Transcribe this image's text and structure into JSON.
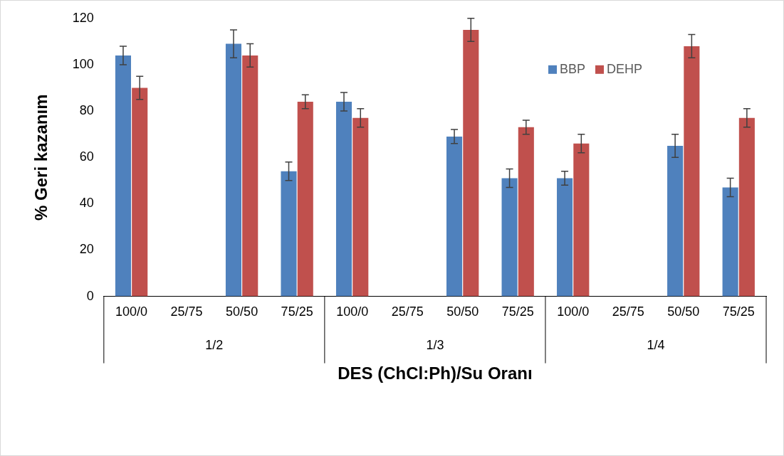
{
  "chart_data": {
    "type": "bar",
    "xlabel": "DES (ChCl:Ph)/Su Oranı",
    "ylabel": "% Geri kazanım",
    "categories": [
      "100/0",
      "25/75",
      "50/50",
      "75/25",
      "100/0",
      "25/75",
      "50/50",
      "75/25",
      "100/0",
      "25/75",
      "50/50",
      "75/25"
    ],
    "annotations": [
      "1/2",
      "1/3",
      "1/4"
    ],
    "series": [
      {
        "name": "BBP",
        "color": "#4f81bd",
        "values": [
          104,
          0,
          109,
          54,
          84,
          0,
          69,
          51,
          51,
          0,
          65,
          47
        ],
        "errors": [
          4,
          null,
          6,
          4,
          4,
          null,
          3,
          4,
          3,
          null,
          5,
          4
        ]
      },
      {
        "name": "DEHP",
        "color": "#c0504d",
        "values": [
          90,
          0,
          104,
          84,
          77,
          0,
          115,
          73,
          66,
          0,
          108,
          77
        ],
        "errors": [
          5,
          null,
          5,
          3,
          4,
          null,
          5,
          3,
          4,
          null,
          5,
          4
        ]
      }
    ],
    "ylim": [
      0,
      120
    ],
    "yticks": [
      0,
      20,
      40,
      60,
      80,
      100,
      120
    ],
    "grid": false,
    "legend": "top right"
  }
}
